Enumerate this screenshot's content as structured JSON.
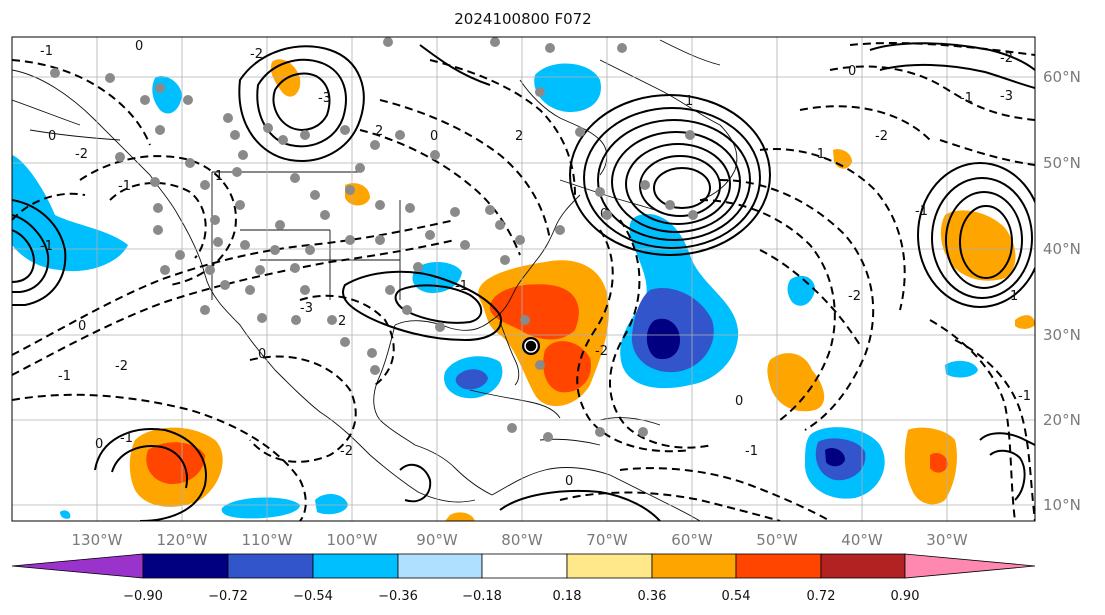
{
  "title": "2024100800 F072",
  "map": {
    "lon_ticks": [
      "130°W",
      "120°W",
      "110°W",
      "100°W",
      "90°W",
      "80°W",
      "70°W",
      "60°W",
      "50°W",
      "40°W",
      "30°W"
    ],
    "lat_ticks": [
      "60°N",
      "50°N",
      "40°N",
      "30°N",
      "20°N",
      "10°N"
    ],
    "contour_labels": [
      "0",
      "-1",
      "-2",
      "-3",
      "2",
      "-1",
      "-2",
      "0",
      "-1",
      "1",
      "0",
      "-1",
      "-2",
      "-3",
      "2",
      "0",
      "-1",
      "-2",
      "0",
      "-1",
      "0",
      "2",
      "0",
      "1",
      "-1",
      "-1",
      "-2",
      "0",
      "-2",
      "0",
      "-1",
      "1",
      "-1",
      "-2",
      "-3",
      "-1",
      "0",
      "-2"
    ]
  },
  "colorbar": {
    "levels": [
      "−0.90",
      "−0.72",
      "−0.54",
      "−0.36",
      "−0.18",
      "0.18",
      "0.36",
      "0.54",
      "0.72",
      "0.90"
    ],
    "colors": [
      "#9933cc",
      "#000080",
      "#3355cc",
      "#00bfff",
      "#b0e0ff",
      "#ffffff",
      "#ffe88a",
      "#ffa500",
      "#ff4500",
      "#b22222",
      "#ff88b0"
    ]
  }
}
